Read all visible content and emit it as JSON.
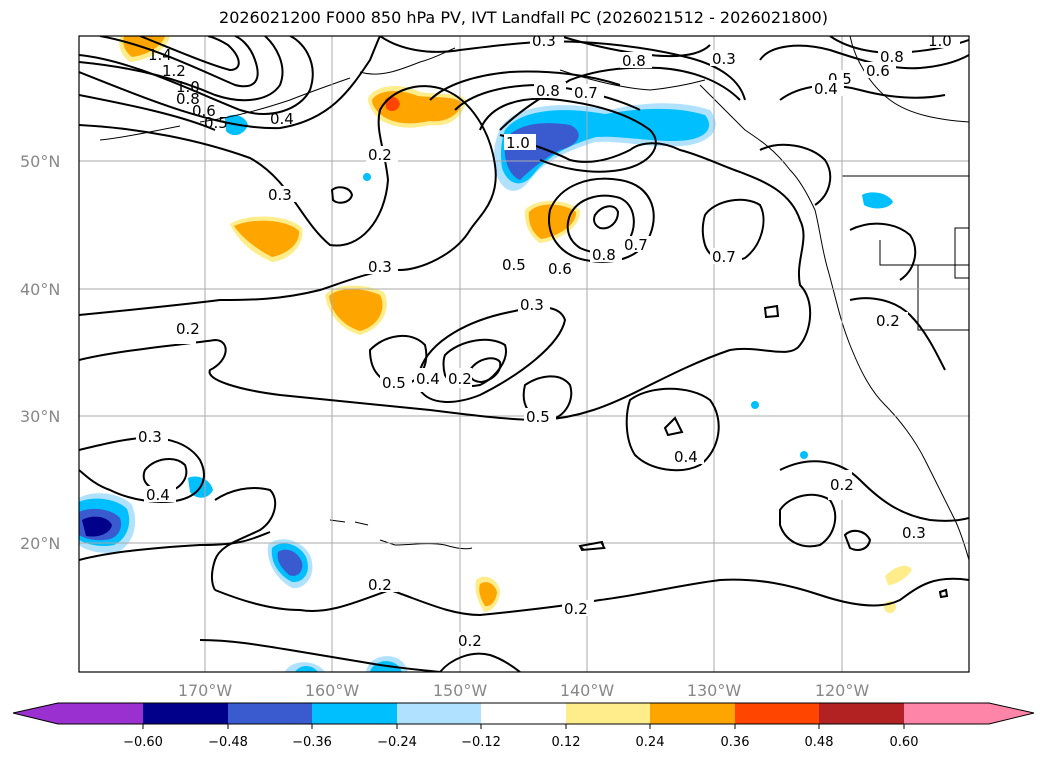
{
  "title": "2026021200 F000 850 hPa PV, IVT Landfall PC (2026021512 - 2026021800)",
  "map": {
    "lat_labels": [
      "50°N",
      "40°N",
      "30°N",
      "20°N"
    ],
    "lon_labels": [
      "170°W",
      "160°W",
      "150°W",
      "140°W",
      "130°W",
      "120°W"
    ],
    "contour_labels": [
      "0.3",
      "0.3",
      "0.8",
      "1.0",
      "0.8",
      "0.5",
      "0.6",
      "0.4",
      "0.8",
      "0.7",
      "1.4",
      "1.2",
      "1.0",
      "0.8",
      "0.6",
      "0.5",
      "0.4",
      "0.2",
      "1.0",
      "0.3",
      "0.3",
      "0.5",
      "0.6",
      "0.8",
      "0.7",
      "0.7",
      "0.2",
      "0.3",
      "0.2",
      "0.5",
      "0.4",
      "0.2",
      "0.5",
      "0.4",
      "0.3",
      "0.4",
      "0.2",
      "0.3",
      "0.2",
      "0.2",
      "0.2"
    ]
  },
  "colorbar": {
    "ticks": [
      "−0.60",
      "−0.48",
      "−0.36",
      "−0.24",
      "−0.12",
      "0.12",
      "0.24",
      "0.36",
      "0.48",
      "0.60"
    ],
    "colors": [
      "#9b30d0",
      "#00008b",
      "#3a5bd0",
      "#00bfff",
      "#b0e2ff",
      "#ffffff",
      "#ffec8b",
      "#ffa500",
      "#ff4500",
      "#b22222",
      "#ff85a8"
    ]
  }
}
